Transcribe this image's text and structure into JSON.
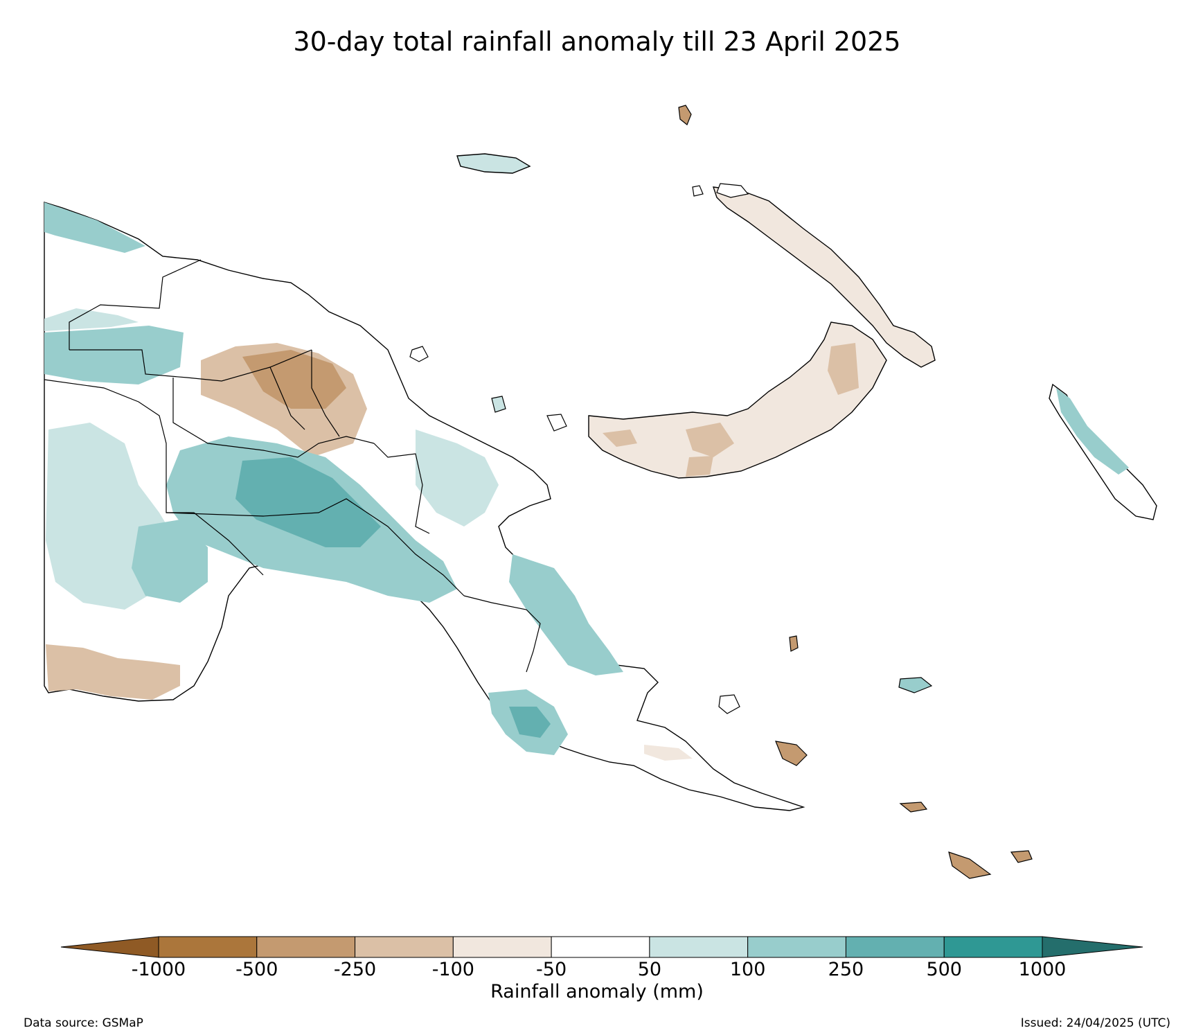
{
  "title": "30-day total rainfall anomaly till 23 April 2025",
  "colorbar": {
    "label": "Rainfall anomaly (mm)",
    "ticks": [
      "-1000",
      "-500",
      "-250",
      "-100",
      "-50",
      "50",
      "100",
      "250",
      "500",
      "1000"
    ],
    "bins": [
      {
        "range": "< -1000",
        "color": "#8f5a25"
      },
      {
        "range": "-1000 to -500",
        "color": "#ab763b"
      },
      {
        "range": "-500 to -250",
        "color": "#c49a70"
      },
      {
        "range": "-250 to -100",
        "color": "#dbc0a6"
      },
      {
        "range": "-100 to -50",
        "color": "#f1e7de"
      },
      {
        "range": "-50 to 50",
        "color": "#ffffff"
      },
      {
        "range": "50 to 100",
        "color": "#cae4e3"
      },
      {
        "range": "100 to 250",
        "color": "#98cdcc"
      },
      {
        "range": "250 to 500",
        "color": "#63b0b0"
      },
      {
        "range": "500 to 1000",
        "color": "#2f9894"
      },
      {
        "range": "> 1000",
        "color": "#246e6c"
      }
    ]
  },
  "footer": {
    "source": "Data source: GSMaP",
    "issued": "Issued: 24/04/2025 (UTC)"
  }
}
